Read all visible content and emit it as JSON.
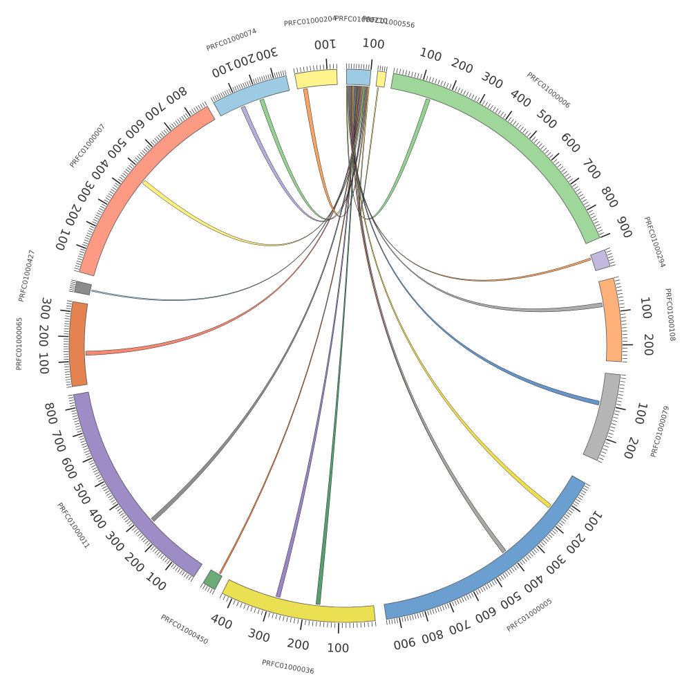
{
  "chart_data": {
    "type": "chord",
    "title": "",
    "tick_spacing": 10,
    "major_tick_spacing": 100,
    "contigs": [
      {
        "name": "PRFC01000006",
        "length": 900,
        "color": "#9fd69a"
      },
      {
        "name": "PRFC01000294",
        "length": 60,
        "color": "#c1b9de"
      },
      {
        "name": "PRFC01000108",
        "length": 250,
        "color": "#feb279"
      },
      {
        "name": "PRFC01000079",
        "length": 270,
        "color": "#b5b5b5"
      },
      {
        "name": "PRFC01000005",
        "length": 950,
        "color": "#6a9fcf"
      },
      {
        "name": "PRFC01000036",
        "length": 430,
        "color": "#ebdf52"
      },
      {
        "name": "PRFC01000450",
        "length": 50,
        "color": "#6aab78"
      },
      {
        "name": "PRFC01000011",
        "length": 850,
        "color": "#9d8cc5"
      },
      {
        "name": "PRFC01000065",
        "length": 340,
        "color": "#e48350"
      },
      {
        "name": "PRFC01000427",
        "length": 60,
        "color": "#8c8c8c"
      },
      {
        "name": "PRFC01000007",
        "length": 880,
        "color": "#fc9a84"
      },
      {
        "name": "PRFC01000074",
        "length": 360,
        "color": "#9ecbe4"
      },
      {
        "name": "PRFC01000204",
        "length": 130,
        "color": "#fff48c"
      },
      {
        "name": "PRFC01000210",
        "length": 100,
        "color": "#9ecbe4"
      },
      {
        "name": "PRFC01000556",
        "length": 40,
        "color": "#fff48c"
      }
    ],
    "links": [
      {
        "source": "PRFC01000210",
        "target": "PRFC01000006",
        "color": "#8fcf8a"
      },
      {
        "source": "PRFC01000210",
        "target": "PRFC01000294",
        "color": "#f7a05a"
      },
      {
        "source": "PRFC01000210",
        "target": "PRFC01000108",
        "color": "#a8a8a8"
      },
      {
        "source": "PRFC01000210",
        "target": "PRFC01000079",
        "color": "#5f8fc6"
      },
      {
        "source": "PRFC01000210",
        "target": "PRFC01000005",
        "color": "#f7836c"
      },
      {
        "source": "PRFC01000210",
        "target": "PRFC01000005",
        "color": "#eedd44"
      },
      {
        "source": "PRFC01000210",
        "target": "PRFC01000005",
        "color": "#a8a8a8"
      },
      {
        "source": "PRFC01000210",
        "target": "PRFC01000036",
        "color": "#9580c2"
      },
      {
        "source": "PRFC01000210",
        "target": "PRFC01000036",
        "color": "#4e9a68"
      },
      {
        "source": "PRFC01000210",
        "target": "PRFC01000450",
        "color": "#f07c3a"
      },
      {
        "source": "PRFC01000210",
        "target": "PRFC01000011",
        "color": "#888888"
      },
      {
        "source": "PRFC01000210",
        "target": "PRFC01000065",
        "color": "#f7836c"
      },
      {
        "source": "PRFC01000210",
        "target": "PRFC01000427",
        "color": "#9ecbe4"
      },
      {
        "source": "PRFC01000210",
        "target": "PRFC01000007",
        "color": "#fff07a"
      },
      {
        "source": "PRFC01000210",
        "target": "PRFC01000074",
        "color": "#8fcf8a"
      },
      {
        "source": "PRFC01000210",
        "target": "PRFC01000074",
        "color": "#b3a8d8"
      },
      {
        "source": "PRFC01000210",
        "target": "PRFC01000204",
        "color": "#f7a05a"
      },
      {
        "source": "PRFC01000210",
        "target": "PRFC01000556",
        "color": "#fff07a"
      }
    ]
  }
}
